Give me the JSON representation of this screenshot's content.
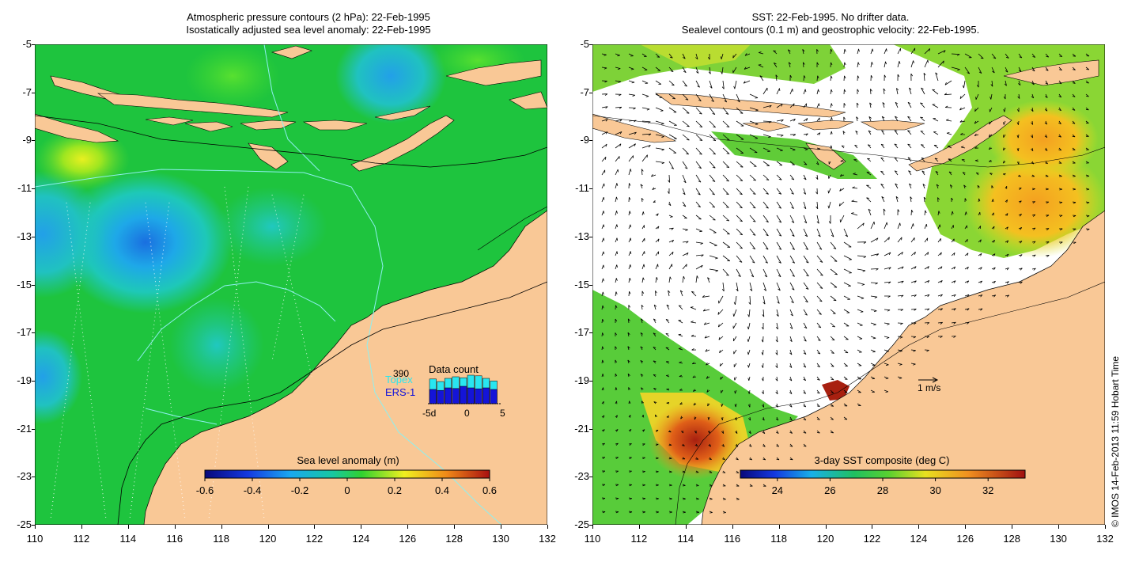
{
  "left_panel": {
    "title_line1": "Atmospheric pressure contours (2 hPa): 22-Feb-1995",
    "title_line2": "Isostatically adjusted sea level anomaly: 22-Feb-1995",
    "y_ticks": [
      "-5",
      "-7",
      "-9",
      "-11",
      "-13",
      "-15",
      "-17",
      "-19",
      "-21",
      "-23",
      "-25"
    ],
    "x_ticks": [
      "110",
      "112",
      "114",
      "116",
      "118",
      "120",
      "122",
      "124",
      "126",
      "128",
      "130",
      "132"
    ],
    "colorbar": {
      "title": "Sea level anomaly (m)",
      "ticks": [
        "-0.6",
        "-0.4",
        "-0.2",
        "0",
        "0.2",
        "0.4",
        "0.6"
      ]
    },
    "data_count": {
      "title": "Data count",
      "max_label": "390",
      "topex_label": "Topex",
      "ers_label": "ERS-1",
      "axis_labels": [
        "-5d",
        "0",
        "5"
      ],
      "topex_color": "#29e6f0",
      "ers_color": "#1414d8",
      "topex_values": [
        0.78,
        0.7,
        0.8,
        0.85,
        0.82,
        0.9,
        0.88,
        0.8,
        0.72
      ],
      "ers_values": [
        0.45,
        0.42,
        0.5,
        0.48,
        0.55,
        0.5,
        0.47,
        0.5,
        0.45
      ]
    }
  },
  "right_panel": {
    "title_line1": "SST: 22-Feb-1995. No drifter data.",
    "title_line2": "Sealevel contours (0.1 m) and geostrophic velocity: 22-Feb-1995.",
    "y_ticks": [
      "-5",
      "-7",
      "-9",
      "-11",
      "-13",
      "-15",
      "-17",
      "-19",
      "-21",
      "-23",
      "-25"
    ],
    "x_ticks": [
      "110",
      "112",
      "114",
      "116",
      "118",
      "120",
      "122",
      "124",
      "126",
      "128",
      "130",
      "132"
    ],
    "colorbar": {
      "title": "3-day SST composite (deg C)",
      "ticks": [
        "24",
        "26",
        "28",
        "30",
        "32"
      ]
    },
    "velocity_scale_label": "1 m/s"
  },
  "credit": "© IMOS 14-Feb-2013 11:59 Hobart Time",
  "colors": {
    "land": "#f9c896",
    "ocean_green": "#1fc43c",
    "ocean_cyan": "#18c8b0",
    "ocean_blue": "#1e8ee8"
  }
}
